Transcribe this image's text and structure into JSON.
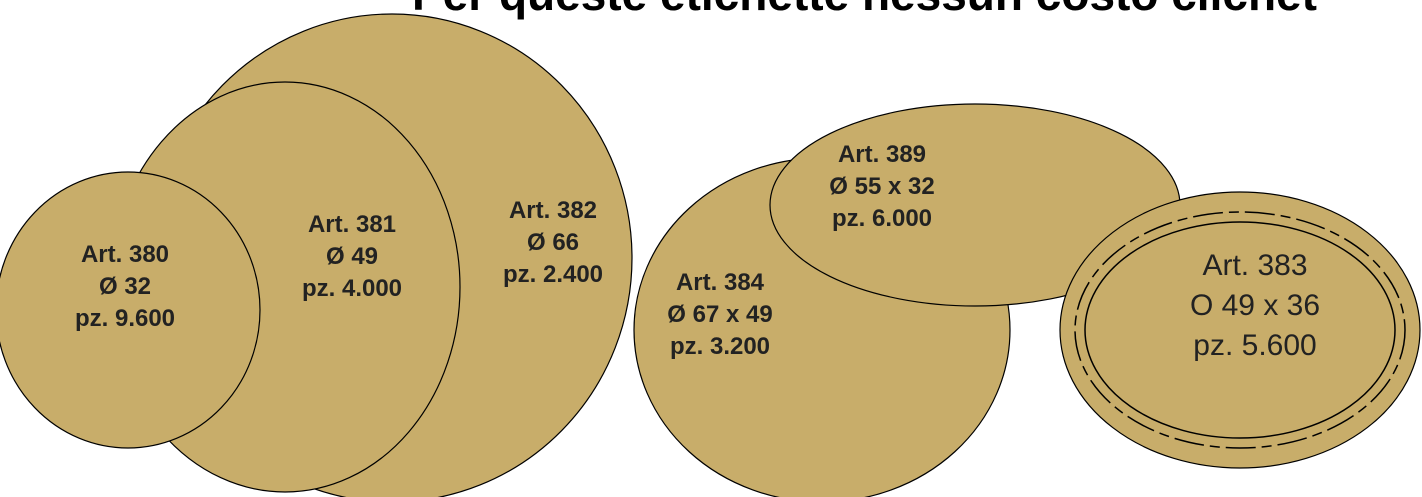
{
  "header": {
    "title": "Per queste etichette nessun costo clichet"
  },
  "labels": [
    {
      "article": "Art. 382",
      "size": "Ø 66",
      "pieces": "pz. 2.400"
    },
    {
      "article": "Art. 381",
      "size": "Ø 49",
      "pieces": "pz. 4.000"
    },
    {
      "article": "Art. 380",
      "size": "Ø 32",
      "pieces": "pz. 9.600"
    },
    {
      "article": "Art. 384",
      "size": "Ø 67 x 49",
      "pieces": "pz. 3.200"
    },
    {
      "article": "Art. 389",
      "size": "Ø 55 x 32",
      "pieces": "pz. 6.000"
    },
    {
      "article": "Art. 383",
      "size": "O 49 x 36",
      "pieces": "pz. 5.600"
    }
  ]
}
